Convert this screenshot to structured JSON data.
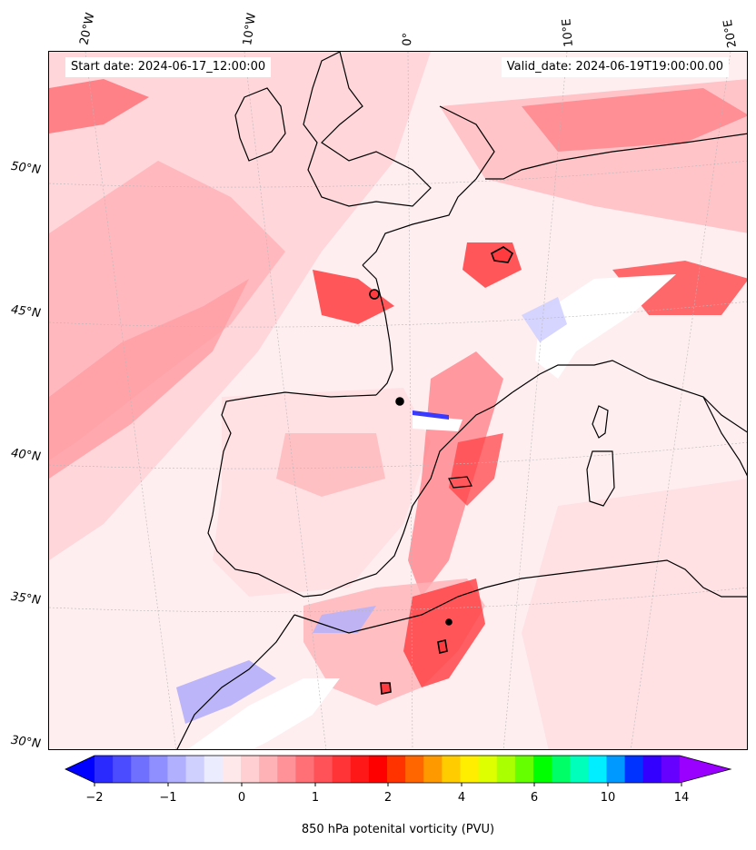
{
  "map": {
    "start_date": "Start date: 2024-06-17_12:00:00",
    "valid_date": "Valid_date: 2024-06-19T19:00:00.00",
    "lon_labels": [
      "20°W",
      "10°W",
      "0°",
      "10°E",
      "20°E"
    ],
    "lat_labels": [
      "50°N",
      "45°N",
      "40°N",
      "35°N",
      "30°N"
    ],
    "colors": {
      "water_base": "#ffeef0",
      "pale_pink": "#ffd6da",
      "light_red": "#ff9da4",
      "mid_red": "#ff6b73",
      "strong_red": "#ff3b3f",
      "pale_blue": "#e6e8ff",
      "blue": "#5a5aff",
      "coast": "#000000"
    }
  },
  "colorbar": {
    "title": "850 hPa potenital vorticity (PVU)",
    "ticks": [
      "−2",
      "−1",
      "0",
      "1",
      "2",
      "4",
      "6",
      "10",
      "14"
    ],
    "colors": [
      "#0000ff",
      "#2a2aff",
      "#4b4bff",
      "#7070ff",
      "#8f8fff",
      "#b0b0ff",
      "#d0d0ff",
      "#ececff",
      "#ffe8ea",
      "#ffcfd2",
      "#ffb2b6",
      "#ff9198",
      "#ff6f76",
      "#ff5258",
      "#ff3436",
      "#ff1818",
      "#ff0000",
      "#ff3300",
      "#ff6600",
      "#ff9900",
      "#ffcc00",
      "#ffee00",
      "#ddff00",
      "#aaff00",
      "#66ff00",
      "#00ff00",
      "#00ff66",
      "#00ffbb",
      "#00eeff",
      "#0099ff",
      "#0033ff",
      "#3300ff",
      "#6600ff",
      "#9900ff"
    ]
  }
}
